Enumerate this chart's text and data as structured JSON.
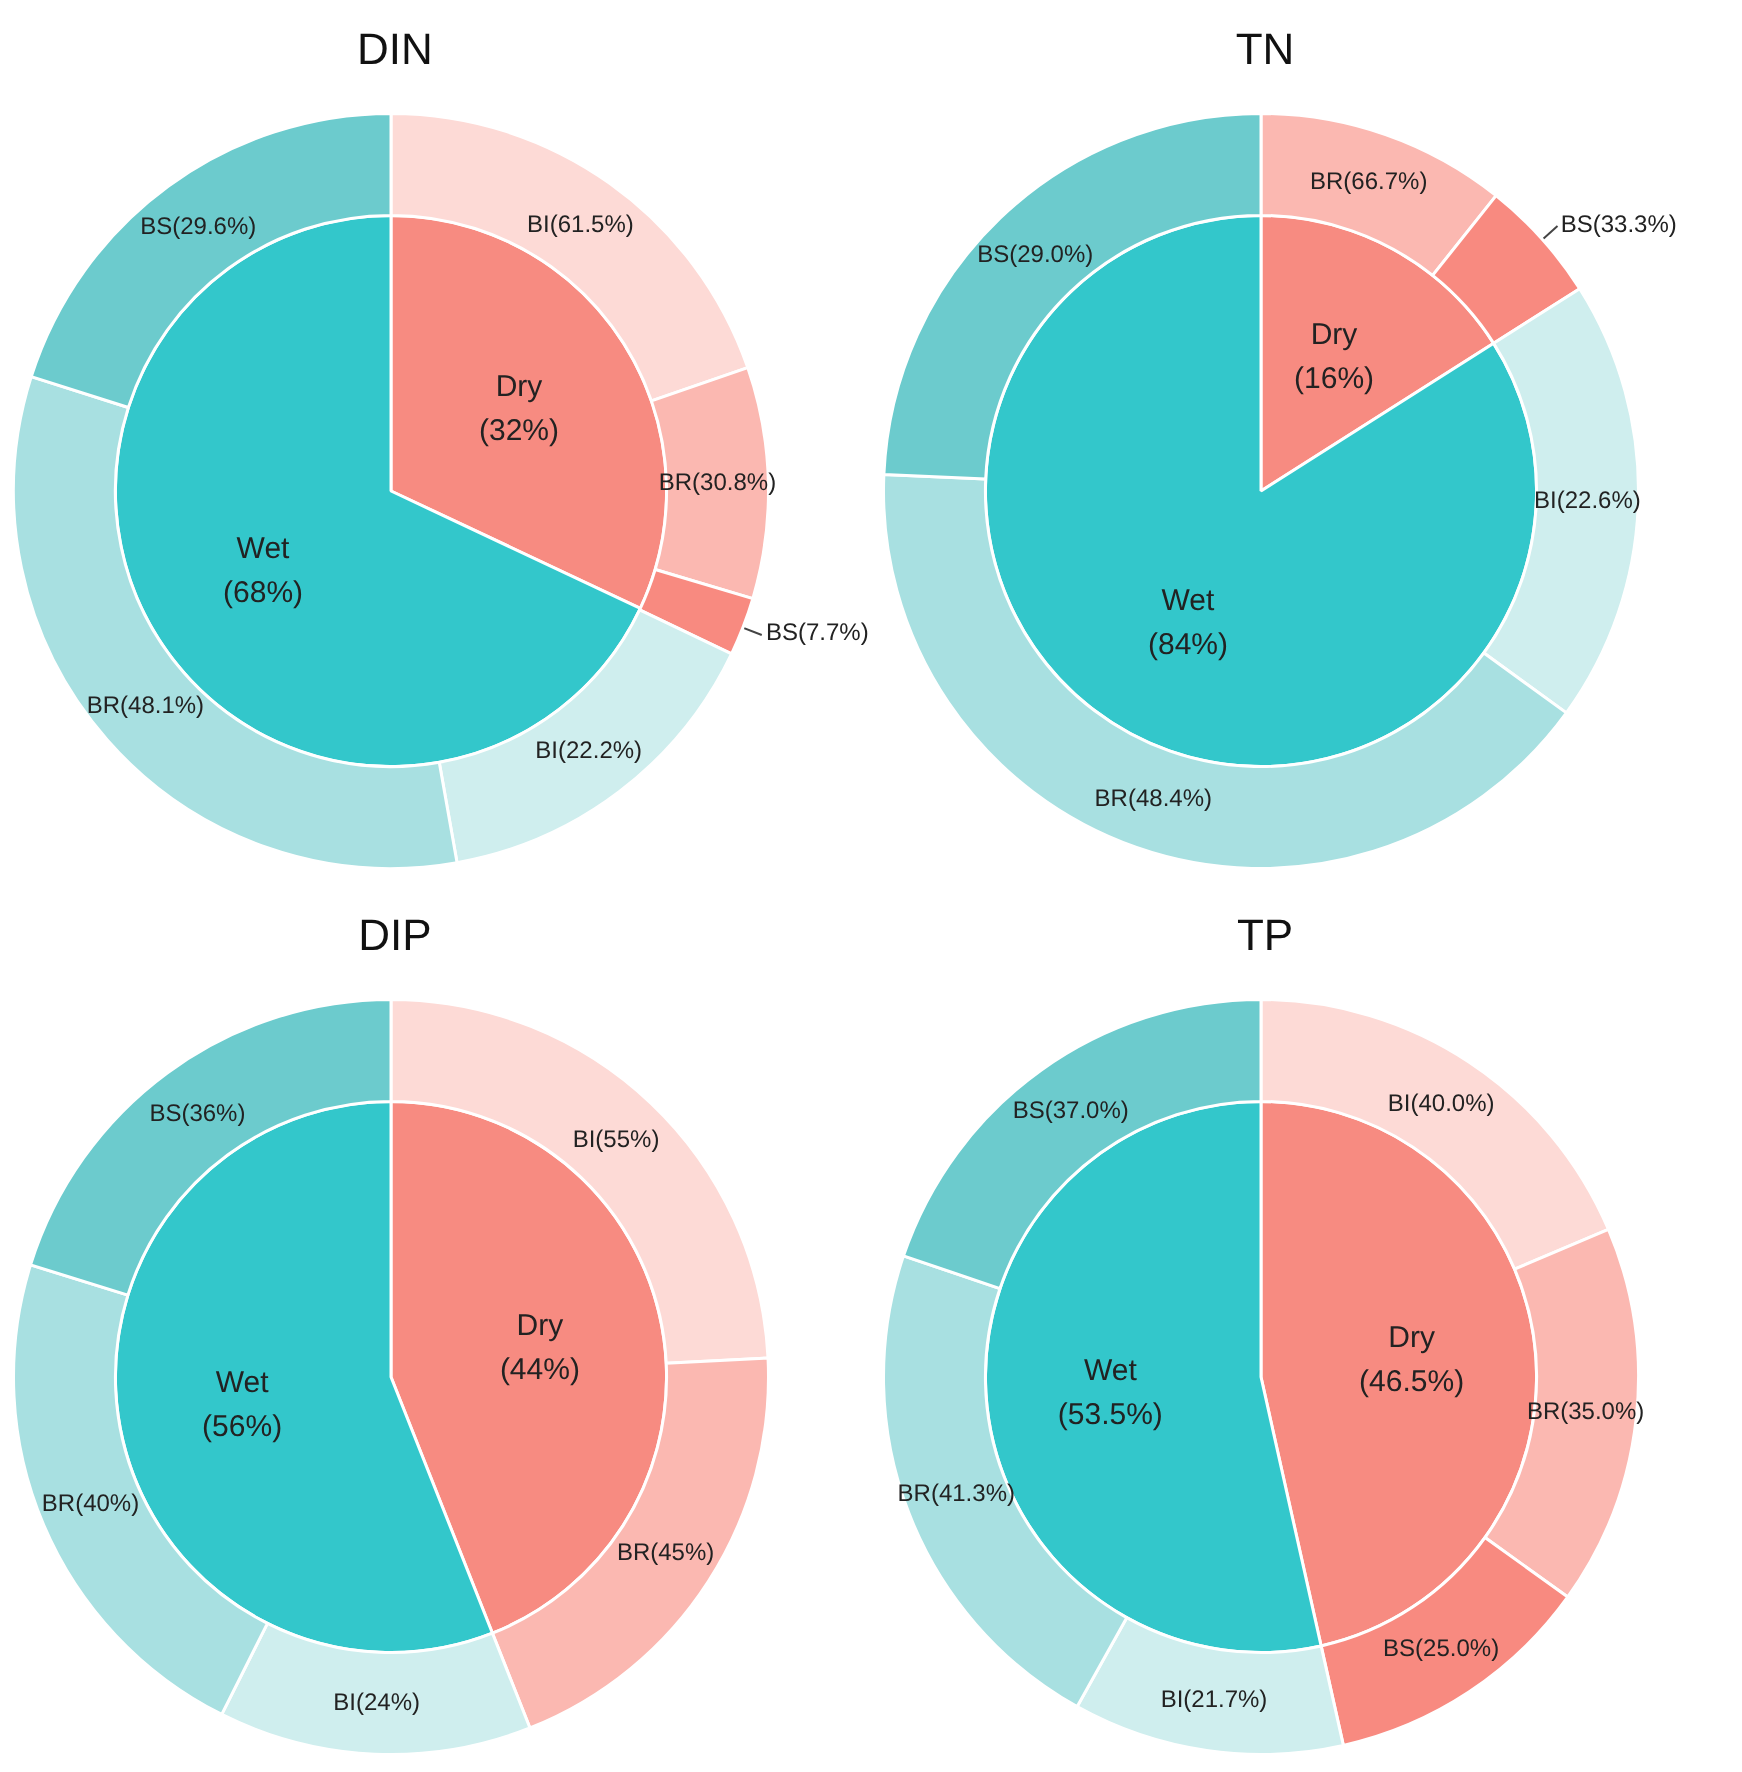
{
  "chart_data": [
    {
      "type": "donut",
      "title": "DIN",
      "categories": [
        "BI(61.5%)",
        "BR(30.8%)",
        "BS(7.7%)",
        "BI(22.2%)",
        "BR(48.1%)",
        "BS(29.6%)"
      ],
      "values": [
        19.7,
        9.9,
        2.5,
        15.1,
        32.7,
        20.1
      ],
      "colors": [
        "#fddad6",
        "#fbb8b1",
        "#f88a80",
        "#cfeeee",
        "#a8e0e1",
        "#6ccbcd"
      ]
    },
    {
      "type": "pie",
      "categories": [
        "Dry",
        "Wet"
      ],
      "values": [
        32,
        68
      ],
      "colors": [
        "#f78b81",
        "#33c7cb"
      ],
      "value_labels": [
        "(32%)",
        "(68%)"
      ]
    },
    {
      "type": "donut",
      "title": "TN",
      "categories": [
        "BR(66.7%)",
        "BS(33.3%)",
        "BI(22.6%)",
        "BR(48.4%)",
        "BS(29.0%)"
      ],
      "values": [
        10.7,
        5.3,
        19.0,
        40.7,
        24.3
      ],
      "colors": [
        "#fbb8b1",
        "#f88a80",
        "#cfeeee",
        "#a8e0e1",
        "#6ccbcd"
      ]
    },
    {
      "type": "pie",
      "categories": [
        "Dry",
        "Wet"
      ],
      "values": [
        16,
        84
      ],
      "colors": [
        "#f78b81",
        "#33c7cb"
      ],
      "value_labels": [
        "(16%)",
        "(84%)"
      ]
    },
    {
      "type": "donut",
      "title": "DIP",
      "categories": [
        "BI(55%)",
        "BR(45%)",
        "BI(24%)",
        "BR(40%)",
        "BS(36%)"
      ],
      "values": [
        24.2,
        19.8,
        13.4,
        22.4,
        20.2
      ],
      "colors": [
        "#fddad6",
        "#fbb8b1",
        "#cfeeee",
        "#a8e0e1",
        "#6ccbcd"
      ]
    },
    {
      "type": "pie",
      "categories": [
        "Dry",
        "Wet"
      ],
      "values": [
        44,
        56
      ],
      "colors": [
        "#f78b81",
        "#33c7cb"
      ],
      "value_labels": [
        "(44%)",
        "(56%)"
      ]
    },
    {
      "type": "donut",
      "title": "TP",
      "categories": [
        "BI(40.0%)",
        "BR(35.0%)",
        "BS(25.0%)",
        "BI(21.7%)",
        "BR(41.3%)",
        "BS(37.0%)"
      ],
      "values": [
        18.6,
        16.3,
        11.6,
        11.6,
        22.1,
        19.8
      ],
      "colors": [
        "#fddad6",
        "#fbb8b1",
        "#f88a80",
        "#cfeeee",
        "#a8e0e1",
        "#6ccbcd"
      ]
    },
    {
      "type": "pie",
      "categories": [
        "Dry",
        "Wet"
      ],
      "values": [
        46.5,
        53.5
      ],
      "colors": [
        "#f78b81",
        "#33c7cb"
      ],
      "value_labels": [
        "(46.5%)",
        "(53.5%)"
      ]
    }
  ]
}
